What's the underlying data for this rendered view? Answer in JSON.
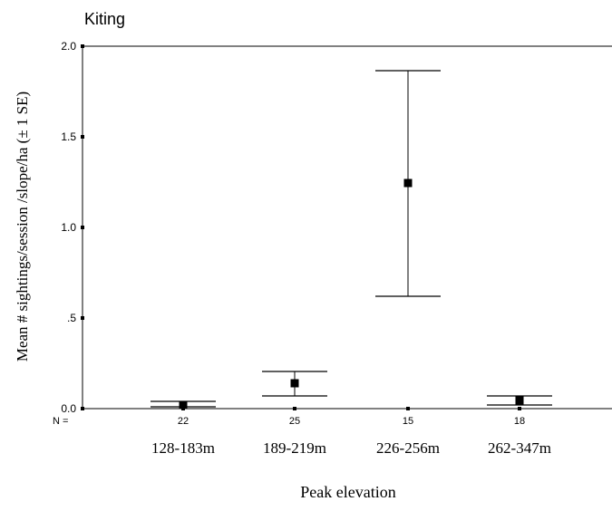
{
  "chart_data": {
    "type": "errorbar",
    "title": "Kiting",
    "xlabel": "Peak elevation",
    "ylabel": "Mean # sightings/session /slope/ha  (± 1 SE)",
    "n_label": "N =",
    "categories": [
      "128-183m",
      "189-219m",
      "226-256m",
      "262-347m"
    ],
    "n_values": [
      "22",
      "25",
      "15",
      "18"
    ],
    "means": [
      0.02,
      0.14,
      1.245,
      0.045
    ],
    "se_low": [
      0.01,
      0.07,
      0.62,
      0.02
    ],
    "se_high": [
      0.04,
      0.205,
      1.865,
      0.07
    ],
    "ylim": [
      0,
      2.0
    ],
    "yticks": [
      0,
      0.5,
      1.0,
      1.5,
      2.0
    ],
    "ytick_labels": [
      "0.0",
      ".5",
      "1.0",
      "1.5",
      "2.0"
    ],
    "grid": false
  }
}
